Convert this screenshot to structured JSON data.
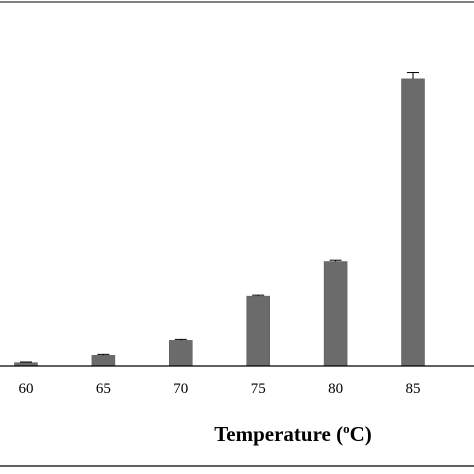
{
  "chart_data": {
    "type": "bar",
    "categories": [
      "60",
      "65",
      "70",
      "75",
      "80",
      "85"
    ],
    "values": [
      1.0,
      3.2,
      7.7,
      21.0,
      31.4,
      86.3
    ],
    "errors": [
      0.2,
      0.3,
      0.3,
      0.3,
      0.4,
      1.9
    ],
    "xlabel_main": "Temperature (",
    "xlabel_sup": "o",
    "xlabel_end": "C)",
    "ylim": [
      0,
      110
    ],
    "bar_color": "#6b6b6b",
    "frame_color": "#000000"
  }
}
